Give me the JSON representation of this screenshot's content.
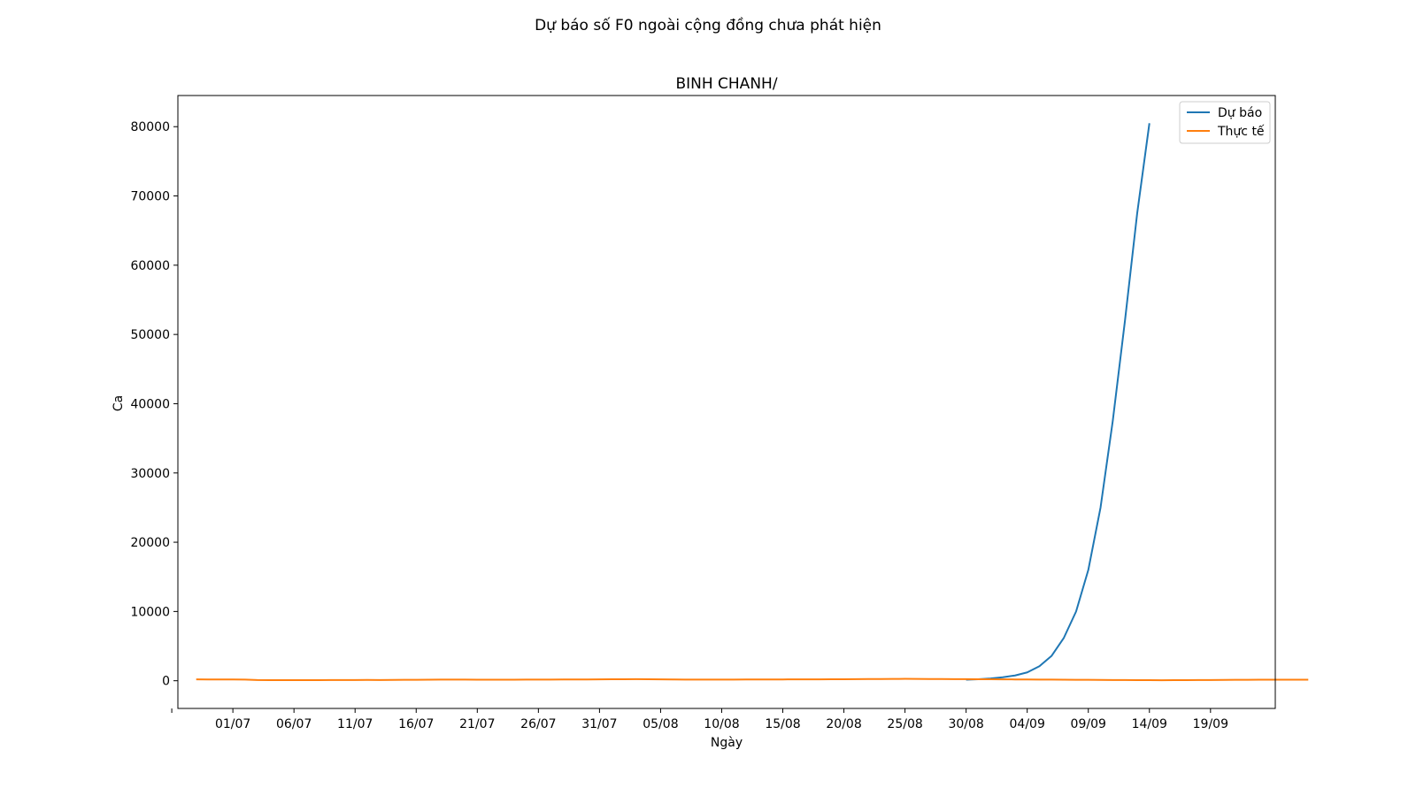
{
  "chart_data": {
    "type": "line",
    "suptitle": "Dự báo số F0 ngoài cộng đồng chưa phát hiện",
    "title": "BINH CHANH/",
    "xlabel": "Ngày",
    "ylabel": "Ca",
    "x_tick_labels": [
      "",
      "01/07",
      "06/07",
      "11/07",
      "16/07",
      "21/07",
      "26/07",
      "31/07",
      "05/08",
      "10/08",
      "15/08",
      "20/08",
      "25/08",
      "30/08",
      "04/09",
      "09/09",
      "14/09",
      "19/09"
    ],
    "y_ticks": [
      0,
      10000,
      20000,
      30000,
      40000,
      50000,
      60000,
      70000,
      80000
    ],
    "y_tick_labels": [
      "0",
      "10000",
      "20000",
      "30000",
      "40000",
      "50000",
      "60000",
      "70000",
      "80000"
    ],
    "ylim": [
      -4000,
      84500
    ],
    "xlim_days": [
      -3.5,
      86.3
    ],
    "legend_position": "top-right",
    "series": [
      {
        "name": "Dự báo",
        "color": "#1f77b4",
        "start_day": 61,
        "values": [
          150,
          220,
          330,
          500,
          760,
          1200,
          2100,
          3600,
          6200,
          10000,
          16000,
          25000,
          37500,
          52000,
          67500,
          80500
        ]
      },
      {
        "name": "Thực tế",
        "color": "#ff7f0e",
        "start_day": -2,
        "values": [
          200,
          190,
          180,
          180,
          170,
          100,
          90,
          90,
          90,
          90,
          90,
          95,
          100,
          110,
          115,
          110,
          120,
          130,
          140,
          150,
          160,
          165,
          160,
          150,
          150,
          150,
          155,
          160,
          165,
          170,
          175,
          180,
          190,
          200,
          210,
          220,
          230,
          220,
          200,
          180,
          170,
          160,
          160,
          165,
          170,
          175,
          180,
          185,
          190,
          195,
          200,
          205,
          210,
          220,
          230,
          240,
          250,
          260,
          270,
          260,
          250,
          240,
          235,
          230,
          220,
          210,
          200,
          190,
          180,
          170,
          160,
          150,
          140,
          130,
          120,
          110,
          100,
          90,
          80,
          70,
          80,
          90,
          100,
          110,
          120,
          130,
          140,
          150,
          150,
          150,
          150,
          150
        ]
      }
    ]
  }
}
